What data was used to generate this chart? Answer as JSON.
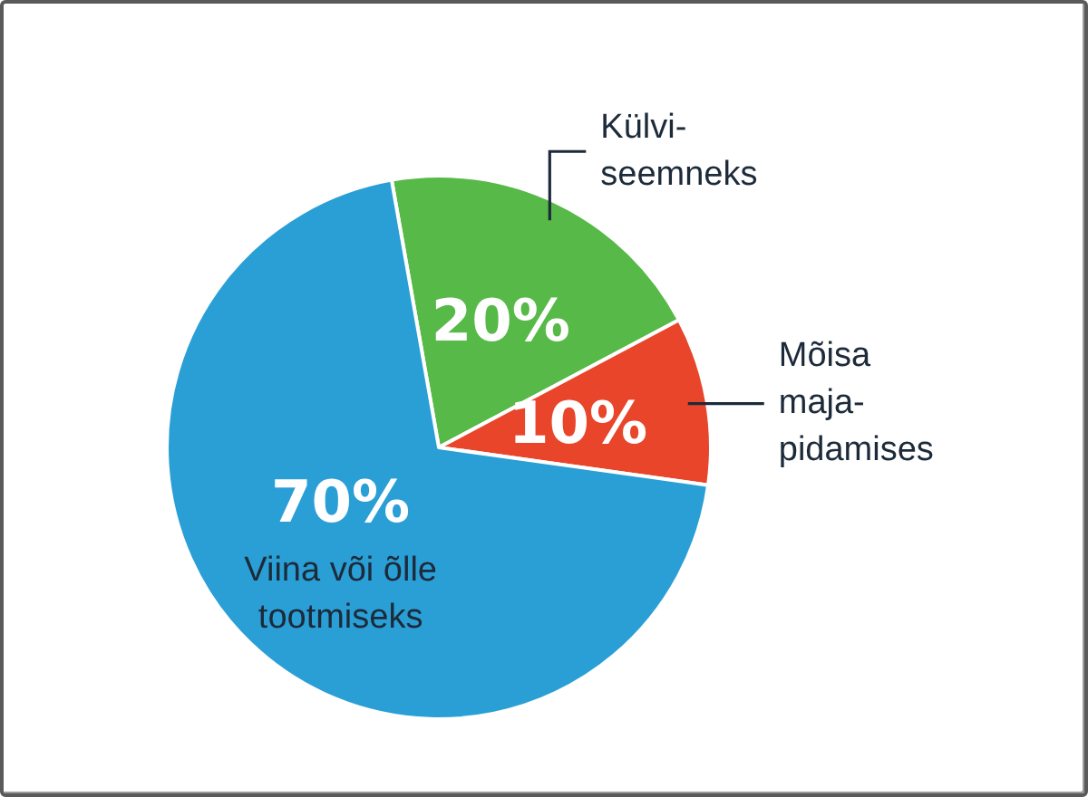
{
  "chart_data": {
    "type": "pie",
    "categories": [
      "Külvi-\nseemneks",
      "Mõisa\nmaja-\npidamises",
      "Viina või õlle\ntootmiseks"
    ],
    "values": [
      20,
      10,
      70
    ],
    "colors": [
      "#57b947",
      "#e8452b",
      "#2a9fd6"
    ],
    "value_labels": [
      "20%",
      "10%",
      "70%"
    ]
  }
}
